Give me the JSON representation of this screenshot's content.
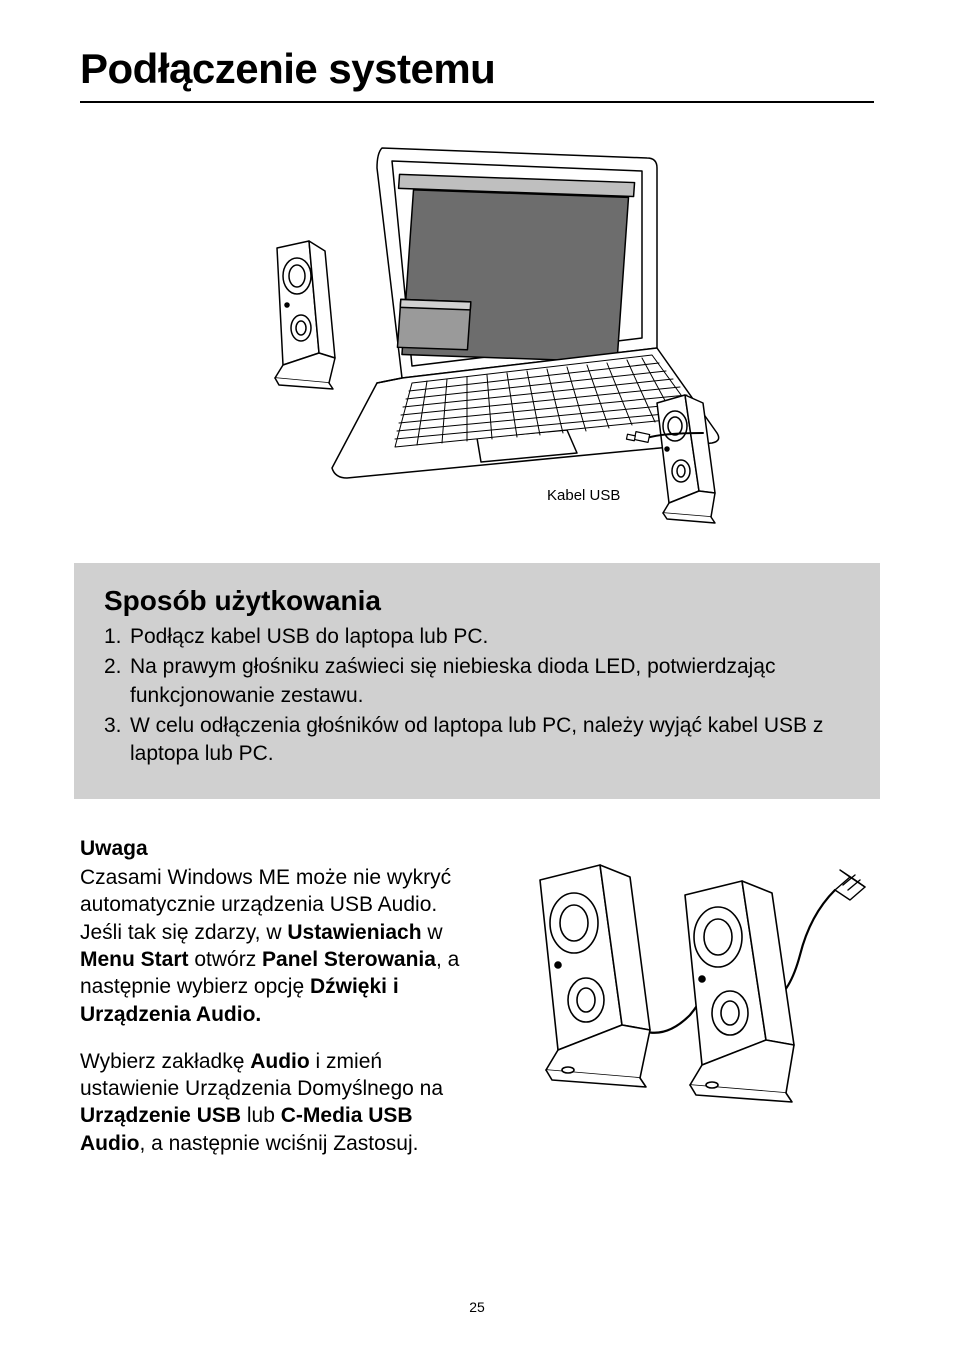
{
  "title": "Podłączenie systemu",
  "figure1": {
    "cable_label": "Kabel USB",
    "stroke": "#000000",
    "fill_bg": "#ffffff",
    "fill_screen": "#6d6d6d",
    "fill_keys": "#ffffff",
    "label_fontsize": 15
  },
  "usage": {
    "heading": "Sposób użytkowania",
    "background": "#d0d0d0",
    "heading_fontsize": 28,
    "body_fontsize": 21,
    "items": [
      {
        "num": "1.",
        "text": "Podłącz kabel USB do laptopa lub PC."
      },
      {
        "num": "2.",
        "text": "Na prawym głośniku zaświeci się niebieska dioda LED, potwierdzając funkcjonowanie zestawu."
      },
      {
        "num": "3.",
        "text": "W celu odłączenia głośników od laptopa lub PC, należy wyjąć kabel USB z laptopa lub PC."
      }
    ]
  },
  "note": {
    "heading": "Uwaga",
    "heading_fontsize": 21,
    "body_fontsize": 21,
    "p1_segments": [
      {
        "t": "Czasami Windows ME może nie wykryć automatycznie urządzenia USB Audio. Jeśli tak się zdarzy, w ",
        "b": false
      },
      {
        "t": "Ustawieniach",
        "b": true
      },
      {
        "t": " w ",
        "b": false
      },
      {
        "t": "Menu Start",
        "b": true
      },
      {
        "t": " otwórz ",
        "b": false
      },
      {
        "t": "Panel Sterowania",
        "b": true
      },
      {
        "t": ", a następnie wybierz opcję ",
        "b": false
      },
      {
        "t": "Dźwięki i Urządzenia Audio.",
        "b": true
      }
    ],
    "p2_segments": [
      {
        "t": "Wybierz zakładkę ",
        "b": false
      },
      {
        "t": "Audio",
        "b": true
      },
      {
        "t": " i zmień ustawienie Urządzenia Domyślnego na ",
        "b": false
      },
      {
        "t": "Urządzenie USB",
        "b": true
      },
      {
        "t": " lub ",
        "b": false
      },
      {
        "t": "C-Media USB Audio",
        "b": true
      },
      {
        "t": ", a następnie wciśnij Zastosuj.",
        "b": false
      }
    ]
  },
  "figure2": {
    "stroke": "#000000",
    "fill_bg": "#ffffff"
  },
  "page_number": "25"
}
